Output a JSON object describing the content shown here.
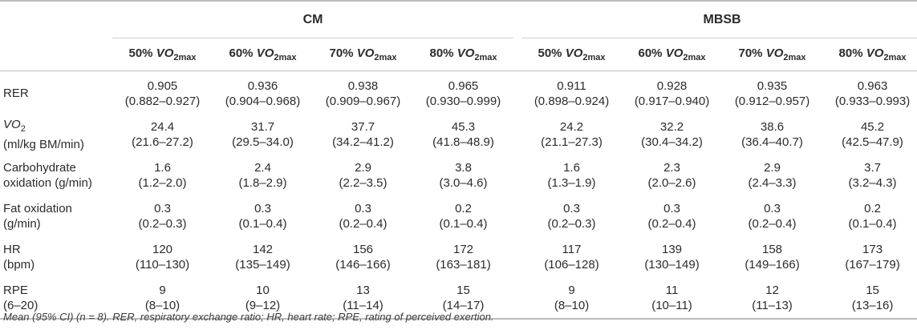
{
  "groups": {
    "cm": "CM",
    "mbsb": "MBSB"
  },
  "columns": [
    {
      "pct": "50%",
      "vo": "VO",
      "sub": "2max"
    },
    {
      "pct": "60%",
      "vo": "VO",
      "sub": "2max"
    },
    {
      "pct": "70%",
      "vo": "VO",
      "sub": "2max"
    },
    {
      "pct": "80%",
      "vo": "VO",
      "sub": "2max"
    },
    {
      "pct": "50%",
      "vo": "VO",
      "sub": "2max"
    },
    {
      "pct": "60%",
      "vo": "VO",
      "sub": "2max"
    },
    {
      "pct": "70%",
      "vo": "VO",
      "sub": "2max"
    },
    {
      "pct": "80%",
      "vo": "VO",
      "sub": "2max"
    }
  ],
  "rows": [
    {
      "label1": "RER",
      "label2": "",
      "cells": [
        [
          "0.905",
          "(0.882–0.927)"
        ],
        [
          "0.936",
          "(0.904–0.968)"
        ],
        [
          "0.938",
          "(0.909–0.967)"
        ],
        [
          "0.965",
          "(0.930–0.999)"
        ],
        [
          "0.911",
          "(0.898–0.924)"
        ],
        [
          "0.928",
          "(0.917–0.940)"
        ],
        [
          "0.935",
          "(0.912–0.957)"
        ],
        [
          "0.963",
          "(0.933–0.993)"
        ]
      ]
    },
    {
      "label1": "VO",
      "label1_sub": "2",
      "label2": "(ml/kg BM/min)",
      "cells": [
        [
          "24.4",
          "(21.6–27.2)"
        ],
        [
          "31.7",
          "(29.5–34.0)"
        ],
        [
          "37.7",
          "(34.2–41.2)"
        ],
        [
          "45.3",
          "(41.8–48.9)"
        ],
        [
          "24.2",
          "(21.1–27.3)"
        ],
        [
          "32.2",
          "(30.4–34.2)"
        ],
        [
          "38.6",
          "(36.4–40.7)"
        ],
        [
          "45.2",
          "(42.5–47.9)"
        ]
      ]
    },
    {
      "label1": "Carbohydrate",
      "label2": "oxidation (g/min)",
      "cells": [
        [
          "1.6",
          "(1.2–2.0)"
        ],
        [
          "2.4",
          "(1.8–2.9)"
        ],
        [
          "2.9",
          "(2.2–3.5)"
        ],
        [
          "3.8",
          "(3.0–4.6)"
        ],
        [
          "1.6",
          "(1.3–1.9)"
        ],
        [
          "2.3",
          "(2.0–2.6)"
        ],
        [
          "2.9",
          "(2.4–3.3)"
        ],
        [
          "3.7",
          "(3.2–4.3)"
        ]
      ]
    },
    {
      "label1": "Fat oxidation",
      "label2": "(g/min)",
      "cells": [
        [
          "0.3",
          "(0.2–0.3)"
        ],
        [
          "0.3",
          "(0.1–0.4)"
        ],
        [
          "0.3",
          "(0.2–0.4)"
        ],
        [
          "0.2",
          "(0.1–0.4)"
        ],
        [
          "0.3",
          "(0.2–0.3)"
        ],
        [
          "0.3",
          "(0.2–0.4)"
        ],
        [
          "0.3",
          "(0.2–0.4)"
        ],
        [
          "0.2",
          "(0.1–0.4)"
        ]
      ]
    },
    {
      "label1": "HR",
      "label2": "(bpm)",
      "cells": [
        [
          "120",
          "(110–130)"
        ],
        [
          "142",
          "(135–149)"
        ],
        [
          "156",
          "(146–166)"
        ],
        [
          "172",
          "(163–181)"
        ],
        [
          "117",
          "(106–128)"
        ],
        [
          "139",
          "(130–149)"
        ],
        [
          "158",
          "(149–166)"
        ],
        [
          "173",
          "(167–179)"
        ]
      ]
    },
    {
      "label1": "RPE",
      "label2": "(6–20)",
      "cells": [
        [
          "9",
          "(8–10)"
        ],
        [
          "10",
          "(9–12)"
        ],
        [
          "13",
          "(11–14)"
        ],
        [
          "15",
          "(14–17)"
        ],
        [
          "9",
          "(8–10)"
        ],
        [
          "11",
          "(10–11)"
        ],
        [
          "12",
          "(11–13)"
        ],
        [
          "15",
          "(13–16)"
        ]
      ]
    }
  ],
  "footnote": "Mean (95% CI) (n = 8). RER, respiratory exchange ratio; HR, heart rate; RPE, rating of perceived exertion."
}
